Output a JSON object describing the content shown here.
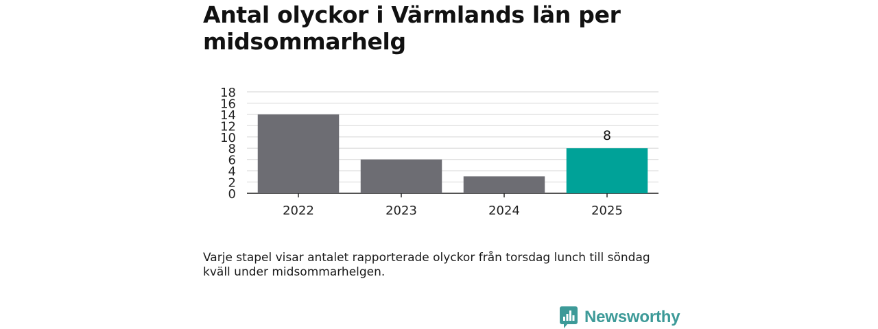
{
  "title": "Antal olyckor i Värmlands län per midsommarhelg",
  "caption": "Varje stapel visar antalet rapporterade olyckor från torsdag lunch till söndag kväll under midsommarhelgen.",
  "brand": {
    "name": "Newsworthy",
    "color": "#3d9a98"
  },
  "chart_data": {
    "type": "bar",
    "categories": [
      "2022",
      "2023",
      "2024",
      "2025"
    ],
    "values": [
      14,
      6,
      3,
      8
    ],
    "ylim": [
      0,
      18
    ],
    "yticks": [
      0,
      2,
      4,
      6,
      8,
      10,
      12,
      14,
      16,
      18
    ],
    "grid": true,
    "xlabel": "",
    "ylabel": "",
    "colors": [
      "#6d6d73",
      "#6d6d73",
      "#6d6d73",
      "#00a298"
    ],
    "highlight_index": 3,
    "data_labels": [
      null,
      null,
      null,
      "8"
    ]
  }
}
